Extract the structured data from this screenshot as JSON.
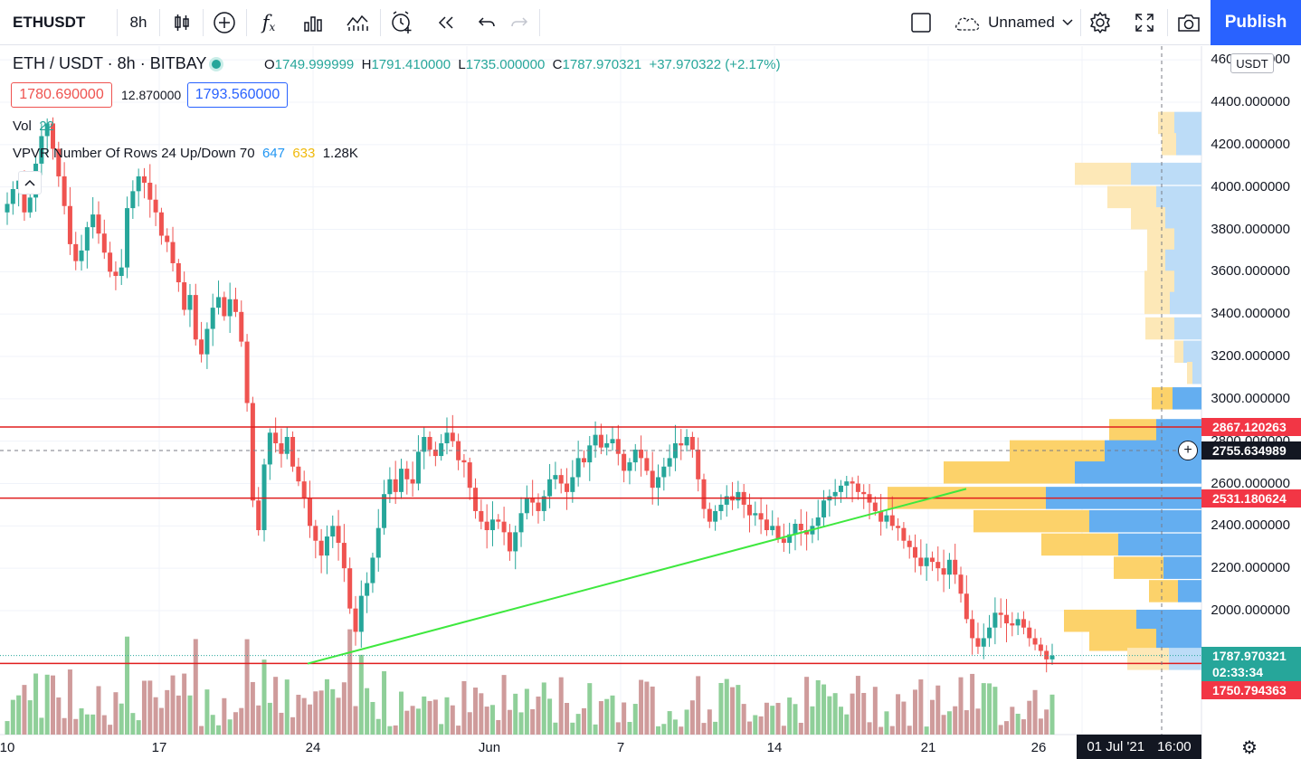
{
  "toolbar": {
    "symbol": "ETHUSDT",
    "interval": "8h",
    "layout_name": "Unnamed",
    "publish_label": "Publish",
    "icons": [
      "candles-icon",
      "add-compare-icon",
      "indicators-icon",
      "financials-icon",
      "templates-icon",
      "alert-icon",
      "replay-icon",
      "undo-icon",
      "redo-icon",
      "checkbox-icon",
      "cloud-icon",
      "settings-icon",
      "fullscreen-icon",
      "snapshot-icon"
    ]
  },
  "legend": {
    "title": "ETH / USDT · 8h · BITBAY",
    "open_k": "O",
    "open": "1749.999999",
    "high_k": "H",
    "high": "1791.410000",
    "low_k": "L",
    "low": "1735.000000",
    "close_k": "C",
    "close": "1787.970321",
    "change": "+37.970322 (+2.17%)",
    "bid": "1780.690000",
    "spread": "12.870000",
    "ask": "1793.560000",
    "vol_label": "Vol",
    "vol_value": "22",
    "vpvr_label": "VPVR Number Of Rows 24 Up/Down 70",
    "vpvr_up": "647",
    "vpvr_down": "633",
    "vpvr_total": "1.28K"
  },
  "price_scale": {
    "currency": "USDT",
    "labels": [
      "4600.000000",
      "4400.000000",
      "4200.000000",
      "4000.000000",
      "3800.000000",
      "3600.000000",
      "3400.000000",
      "3200.000000",
      "3000.000000",
      "2800.000000",
      "2600.000000",
      "2400.000000",
      "2200.000000",
      "2000.000000"
    ],
    "tags": [
      {
        "value": "2867.120263",
        "color": "#f23645"
      },
      {
        "value": "2755.634989",
        "color": "#131722"
      },
      {
        "value": "2531.180624",
        "color": "#f23645"
      },
      {
        "value": "1787.970321",
        "color": "#26a69a"
      },
      {
        "value": "02:33:34",
        "color": "#26a69a"
      },
      {
        "value": "1750.794363",
        "color": "#f23645"
      }
    ]
  },
  "time_scale": {
    "labels": [
      "10",
      "17",
      "24",
      "Jun",
      "7",
      "14",
      "21",
      "26"
    ],
    "crosshair_date": "01 Jul '21",
    "crosshair_time": "16:00"
  },
  "colors": {
    "up": "#26a69a",
    "down": "#ef5350",
    "hline": "#e01e1e",
    "trend": "#3ee83e",
    "vp_up": "#bcdcf7",
    "vp_down": "#fde8b7"
  },
  "chart_data": {
    "type": "candlestick",
    "ylim": [
      1700,
      4600
    ],
    "horizontal_lines": [
      2867.120263,
      2531.180624,
      1750.794363
    ],
    "trend_line": [
      [
        1738,
        1750
      ],
      [
        2568,
        2575
      ]
    ],
    "candles_close": [
      3920,
      3990,
      4030,
      3880,
      3950,
      4110,
      4240,
      4300,
      4180,
      4050,
      3910,
      3730,
      3650,
      3700,
      3810,
      3870,
      3780,
      3690,
      3600,
      3580,
      3620,
      3900,
      3980,
      4050,
      4020,
      3940,
      3880,
      3770,
      3740,
      3640,
      3550,
      3420,
      3490,
      3280,
      3210,
      3330,
      3430,
      3480,
      3390,
      3470,
      3410,
      3270,
      2980,
      2520,
      2380,
      2690,
      2840,
      2790,
      2740,
      2820,
      2680,
      2610,
      2530,
      2400,
      2330,
      2260,
      2350,
      2400,
      2320,
      2200,
      2010,
      1900,
      2070,
      2130,
      2250,
      2390,
      2550,
      2620,
      2560,
      2670,
      2620,
      2600,
      2750,
      2820,
      2760,
      2730,
      2790,
      2840,
      2800,
      2710,
      2700,
      2580,
      2470,
      2420,
      2380,
      2430,
      2420,
      2370,
      2280,
      2370,
      2460,
      2530,
      2510,
      2470,
      2540,
      2620,
      2640,
      2600,
      2560,
      2630,
      2720,
      2700,
      2780,
      2830,
      2770,
      2790,
      2810,
      2740,
      2660,
      2700,
      2760,
      2720,
      2660,
      2580,
      2630,
      2680,
      2720,
      2790,
      2780,
      2820,
      2760,
      2620,
      2480,
      2420,
      2470,
      2500,
      2540,
      2520,
      2560,
      2500,
      2450,
      2460,
      2430,
      2380,
      2400,
      2340,
      2320,
      2360,
      2410,
      2380,
      2360,
      2400,
      2440,
      2520,
      2540,
      2560,
      2590,
      2610,
      2600,
      2560,
      2550,
      2510,
      2470,
      2420,
      2450,
      2400,
      2390,
      2330,
      2300,
      2250,
      2210,
      2250,
      2230,
      2200,
      2170,
      2240,
      2170,
      2080,
      1960,
      1870,
      1830,
      1870,
      1920,
      1990,
      1980,
      1940,
      1930,
      1960,
      1920,
      1870,
      1840,
      1810,
      1770,
      1788
    ]
  }
}
